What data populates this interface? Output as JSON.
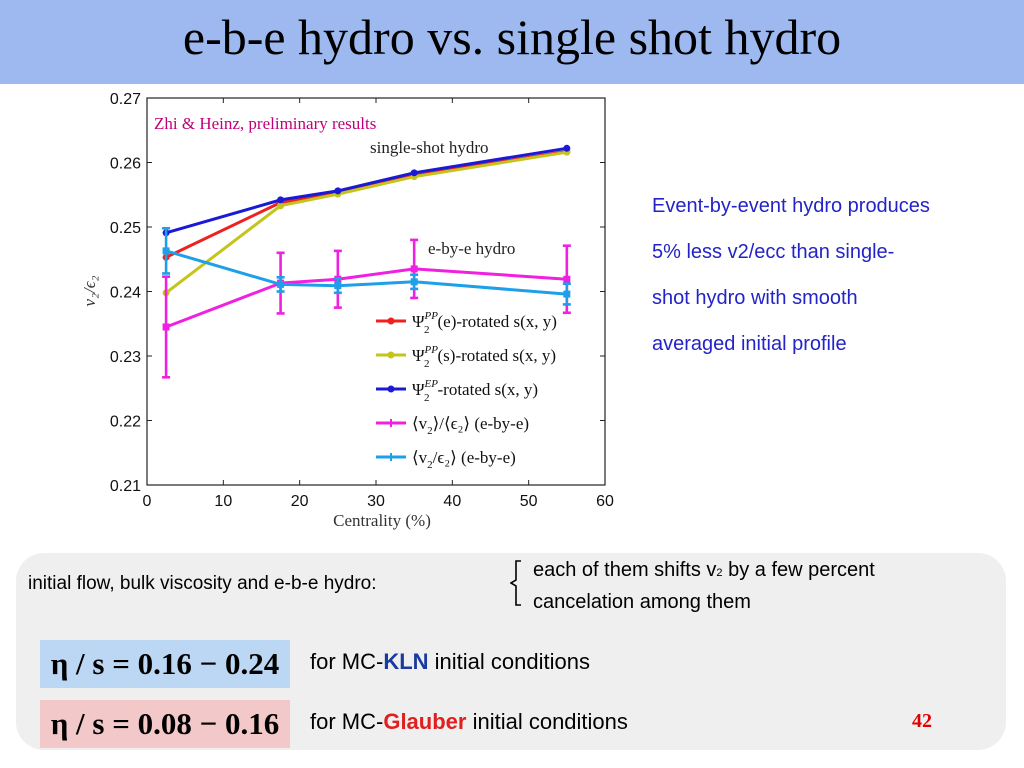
{
  "slide": {
    "title": "e-b-e hydro vs. single shot hydro",
    "number": "42",
    "side_text": [
      "Event-by-event hydro produces",
      "5%  less v2/ecc than single-",
      "shot hydro with  smooth",
      "averaged initial profile"
    ],
    "bottom": {
      "factors_label": "initial flow, bulk viscosity and e-b-e hydro:",
      "shift_text_pre": "each of  them shifts v",
      "shift_text_sub": "2",
      "shift_text_post": " by a few percent",
      "cancel_text": "cancelation among them",
      "eta_kln": "η / s = 0.16 − 0.24",
      "eta_glauber": "η / s = 0.08 − 0.16",
      "kln_pre": "for MC-",
      "kln_word": "KLN",
      "kln_post": " initial conditions",
      "glauber_pre": "for MC-",
      "glauber_word": "Glauber",
      "glauber_post": " initial conditions"
    }
  },
  "chart_data": {
    "type": "line",
    "title": "",
    "annotation_credit": "Zhi & Heinz, preliminary results",
    "annotation_single": "single-shot  hydro",
    "annotation_ebye": "e-by-e hydro",
    "xlabel": "Centrality  (%)",
    "ylabel": "v₂/ϵ₂",
    "xlim": [
      0,
      60
    ],
    "ylim": [
      0.21,
      0.27
    ],
    "xticks": [
      "0",
      "10",
      "20",
      "30",
      "40",
      "50",
      "60"
    ],
    "yticks": [
      "0.21",
      "0.22",
      "0.23",
      "0.24",
      "0.25",
      "0.26",
      "0.27"
    ],
    "legend_position": "lower-right",
    "colors": {
      "red": "#ee2020",
      "yellow": "#c4c41c",
      "blue": "#1a1ad6",
      "magenta": "#f020e0",
      "cyan": "#1ea0e8",
      "credit": "#c0007a"
    },
    "series": [
      {
        "name": "Ψ₂^PP(e)-rotated s(x, y)",
        "legend_pre": "Ψ",
        "legend_sub": "2",
        "legend_sup": "PP",
        "legend_post": "(e)-rotated s(x, y)",
        "color": "#ee2020",
        "x": [
          2.5,
          17.5,
          25,
          35,
          55
        ],
        "y": [
          0.2453,
          0.2538,
          0.2554,
          0.258,
          0.2617
        ],
        "yerr": []
      },
      {
        "name": "Ψ₂^PP(s)-rotated s(x, y)",
        "legend_pre": "Ψ",
        "legend_sub": "2",
        "legend_sup": "PP",
        "legend_post": "(s)-rotated s(x, y)",
        "color": "#c4c41c",
        "x": [
          2.5,
          17.5,
          25,
          35,
          55
        ],
        "y": [
          0.2398,
          0.2533,
          0.2551,
          0.2578,
          0.2616
        ],
        "yerr": []
      },
      {
        "name": "Ψ₂^EP-rotated s(x, y)",
        "legend_pre": "Ψ",
        "legend_sub": "2",
        "legend_sup": "EP",
        "legend_post": "-rotated s(x, y)",
        "color": "#1a1ad6",
        "x": [
          2.5,
          17.5,
          25,
          35,
          55
        ],
        "y": [
          0.2491,
          0.2542,
          0.2556,
          0.2584,
          0.2622
        ],
        "yerr": []
      },
      {
        "name": "⟨v₂⟩/⟨ϵ₂⟩  (e-by-e)",
        "legend_pre": "⟨v",
        "legend_sub": "2",
        "legend_sup": "",
        "legend_post": "⟩/⟨ϵ₂⟩  (e-by-e)",
        "color": "#f020e0",
        "x": [
          2.5,
          17.5,
          25,
          35,
          55
        ],
        "y": [
          0.2345,
          0.2413,
          0.2419,
          0.2435,
          0.2419
        ],
        "yerr": [
          0.0078,
          0.0047,
          0.0044,
          0.0045,
          0.0052
        ]
      },
      {
        "name": "⟨v₂/ϵ₂⟩  (e-by-e)",
        "legend_pre": "⟨v",
        "legend_sub": "2",
        "legend_sup": "",
        "legend_post": "/ϵ₂⟩  (e-by-e)",
        "color": "#1ea0e8",
        "x": [
          2.5,
          17.5,
          25,
          35,
          55
        ],
        "y": [
          0.2463,
          0.2411,
          0.2409,
          0.2415,
          0.2396
        ],
        "yerr": [
          0.0035,
          0.0011,
          0.0011,
          0.0011,
          0.0016
        ]
      }
    ]
  }
}
